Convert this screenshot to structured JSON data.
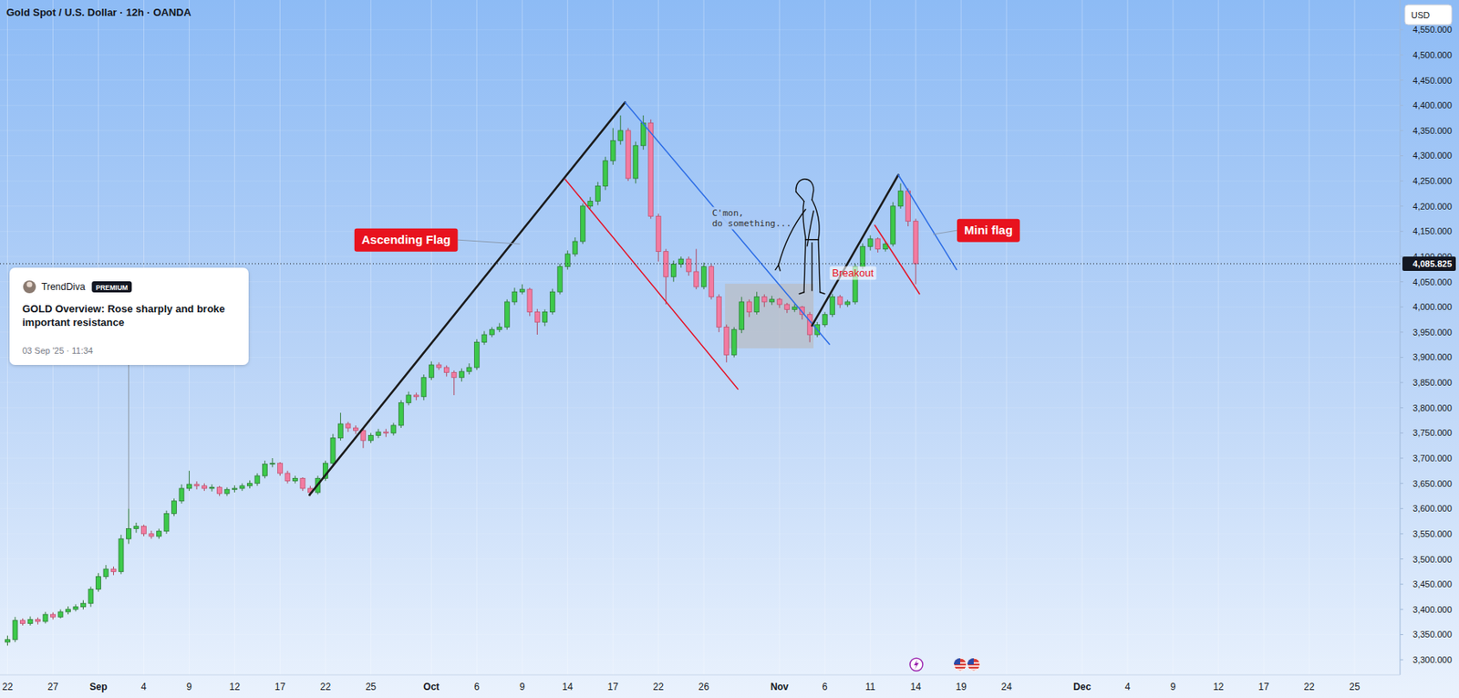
{
  "chart_data": {
    "type": "candlestick",
    "title": "Gold Spot / U.S. Dollar · 12h · OANDA",
    "currency": "USD",
    "categories": [
      "22",
      null,
      null,
      null,
      null,
      null,
      "27",
      null,
      null,
      null,
      null,
      null,
      "Sep",
      null,
      null,
      null,
      null,
      null,
      "4",
      null,
      null,
      null,
      null,
      null,
      "9",
      null,
      null,
      null,
      null,
      null,
      "12",
      null,
      null,
      null,
      null,
      null,
      "17",
      null,
      null,
      null,
      null,
      null,
      "22",
      null,
      null,
      null,
      null,
      null,
      "25",
      null,
      null,
      null,
      null,
      null,
      null,
      null,
      "Oct",
      null,
      null,
      null,
      null,
      null,
      "6",
      null,
      null,
      null,
      null,
      null,
      "9",
      null,
      null,
      null,
      null,
      null,
      "14",
      null,
      null,
      null,
      null,
      null,
      "17",
      null,
      null,
      null,
      null,
      null,
      "22",
      null,
      null,
      null,
      null,
      null,
      "26",
      null,
      null,
      null,
      null,
      null,
      null,
      null,
      null,
      null,
      "Nov",
      null,
      null,
      null,
      null,
      null,
      "6",
      null,
      null,
      null,
      null,
      null,
      "11",
      null,
      null,
      null,
      null,
      null,
      "14",
      null,
      null,
      null,
      null,
      null,
      "19",
      null,
      null,
      null,
      null,
      null,
      "24",
      null,
      null,
      null,
      null,
      null,
      null,
      null,
      null,
      null,
      "Dec",
      null,
      null,
      null,
      null,
      null,
      "4",
      null,
      null,
      null,
      null,
      null,
      "9",
      null,
      null,
      null,
      null,
      null,
      "12",
      null,
      null,
      null,
      null,
      null,
      "17",
      null,
      null,
      null,
      null,
      null,
      "22",
      null,
      null,
      null,
      null,
      null,
      "25",
      null,
      null,
      null,
      null,
      null
    ],
    "open": [
      3335,
      3340,
      3378,
      3372,
      3380,
      3376,
      3390,
      3385,
      3395,
      3400,
      3405,
      3412,
      3440,
      3465,
      3480,
      3475,
      3540,
      3560,
      3565,
      3550,
      3545,
      3555,
      3590,
      3615,
      3640,
      3648,
      3645,
      3640,
      3642,
      3630,
      3638,
      3640,
      3645,
      3650,
      3665,
      3688,
      3690,
      3670,
      3655,
      3660,
      3640,
      3632,
      3660,
      3690,
      3740,
      3768,
      3760,
      3755,
      3735,
      3745,
      3752,
      3750,
      3765,
      3810,
      3825,
      3822,
      3860,
      3885,
      3880,
      3870,
      3860,
      3872,
      3880,
      3930,
      3945,
      3955,
      3960,
      4010,
      4030,
      4035,
      3990,
      3970,
      3990,
      4030,
      4080,
      4105,
      4130,
      4200,
      4210,
      4240,
      4290,
      4330,
      4350,
      4255,
      4320,
      4365,
      4180,
      4110,
      4060,
      4085,
      4095,
      4070,
      4040,
      4080,
      4020,
      3960,
      3905,
      3955,
      4010,
      3990,
      4020,
      4010,
      4015,
      4005,
      3995,
      4000,
      3985,
      3945,
      3965,
      3985,
      4020,
      4005,
      4010,
      4080,
      4120,
      4135,
      4115,
      4125,
      4200,
      4230,
      4170,
      null,
      null,
      null,
      null,
      null,
      null,
      null,
      null,
      null,
      null,
      null,
      null,
      null,
      null,
      null,
      null,
      null,
      null,
      null,
      null,
      null,
      null,
      null,
      null,
      null,
      null,
      null,
      null,
      null,
      null,
      null,
      null,
      null,
      null,
      null,
      null,
      null,
      null,
      null,
      null,
      null,
      null,
      null,
      null,
      null,
      null,
      null,
      null,
      null,
      null,
      null,
      null,
      null,
      null,
      null,
      null,
      null,
      null,
      null,
      null,
      null,
      null,
      null
    ],
    "high": [
      3348,
      3385,
      3382,
      3386,
      3384,
      3395,
      3394,
      3400,
      3406,
      3410,
      3418,
      3445,
      3472,
      3488,
      3485,
      3548,
      3600,
      3572,
      3568,
      3556,
      3560,
      3596,
      3620,
      3648,
      3675,
      3654,
      3650,
      3648,
      3645,
      3642,
      3646,
      3650,
      3656,
      3670,
      3695,
      3700,
      3692,
      3675,
      3665,
      3662,
      3645,
      3665,
      3695,
      3748,
      3790,
      3772,
      3765,
      3760,
      3750,
      3758,
      3758,
      3770,
      3815,
      3832,
      3830,
      3866,
      3892,
      3890,
      3884,
      3874,
      3878,
      3888,
      3936,
      3952,
      3960,
      3968,
      4015,
      4038,
      4045,
      4038,
      3996,
      3995,
      4036,
      4086,
      4112,
      4138,
      4205,
      4218,
      4248,
      4298,
      4355,
      4380,
      4355,
      4328,
      4380,
      4372,
      4185,
      4115,
      4092,
      4100,
      4100,
      4115,
      4088,
      4085,
      4025,
      3965,
      3960,
      4020,
      4015,
      4030,
      4025,
      4022,
      4018,
      4008,
      4006,
      4002,
      3990,
      3970,
      3990,
      4026,
      4024,
      4014,
      4086,
      4126,
      4142,
      4138,
      4130,
      4208,
      4245,
      4235,
      4175,
      null,
      null,
      null,
      null,
      null,
      null,
      null,
      null,
      null,
      null,
      null,
      null,
      null,
      null,
      null,
      null,
      null,
      null,
      null,
      null,
      null,
      null,
      null,
      null,
      null,
      null,
      null,
      null,
      null,
      null,
      null,
      null,
      null,
      null,
      null,
      null,
      null,
      null,
      null,
      null,
      null,
      null,
      null,
      null,
      null,
      null,
      null,
      null,
      null,
      null,
      null,
      null,
      null,
      null,
      null,
      null,
      null,
      null,
      null,
      null,
      null,
      null,
      null
    ],
    "low": [
      3328,
      3335,
      3368,
      3368,
      3370,
      3372,
      3380,
      3382,
      3390,
      3396,
      3400,
      3405,
      3435,
      3460,
      3468,
      3470,
      3530,
      3552,
      3545,
      3540,
      3540,
      3550,
      3585,
      3610,
      3635,
      3638,
      3635,
      3634,
      3625,
      3625,
      3632,
      3635,
      3640,
      3645,
      3660,
      3682,
      3665,
      3650,
      3650,
      3635,
      3625,
      3628,
      3655,
      3685,
      3735,
      3752,
      3748,
      3720,
      3730,
      3740,
      3742,
      3745,
      3760,
      3805,
      3815,
      3815,
      3855,
      3875,
      3862,
      3825,
      3852,
      3866,
      3875,
      3925,
      3940,
      3950,
      3955,
      4004,
      4025,
      3982,
      3945,
      3962,
      3985,
      4025,
      4074,
      4100,
      4125,
      4195,
      4202,
      4232,
      4282,
      4322,
      4250,
      4245,
      4312,
      4175,
      4090,
      4005,
      4050,
      4078,
      4062,
      4035,
      4035,
      4015,
      3950,
      3890,
      3900,
      3948,
      3980,
      3985,
      4000,
      4004,
      3998,
      3988,
      3990,
      3975,
      3930,
      3940,
      3960,
      3980,
      3998,
      4000,
      4005,
      4075,
      4112,
      4108,
      4110,
      4120,
      4195,
      4160,
      4045,
      null,
      null,
      null,
      null,
      null,
      null,
      null,
      null,
      null,
      null,
      null,
      null,
      null,
      null,
      null,
      null,
      null,
      null,
      null,
      null,
      null,
      null,
      null,
      null,
      null,
      null,
      null,
      null,
      null,
      null,
      null,
      null,
      null,
      null,
      null,
      null,
      null,
      null,
      null,
      null,
      null,
      null,
      null,
      null,
      null,
      null,
      null,
      null,
      null,
      null,
      null,
      null,
      null,
      null,
      null,
      null,
      null,
      null,
      null,
      null,
      null,
      null,
      null
    ],
    "close": [
      3340,
      3378,
      3372,
      3380,
      3376,
      3390,
      3385,
      3395,
      3400,
      3405,
      3412,
      3440,
      3465,
      3480,
      3475,
      3540,
      3560,
      3565,
      3550,
      3545,
      3555,
      3590,
      3615,
      3640,
      3648,
      3645,
      3640,
      3642,
      3630,
      3638,
      3640,
      3645,
      3650,
      3665,
      3688,
      3690,
      3670,
      3655,
      3660,
      3640,
      3632,
      3660,
      3690,
      3740,
      3768,
      3760,
      3755,
      3735,
      3745,
      3752,
      3750,
      3765,
      3810,
      3825,
      3822,
      3860,
      3885,
      3880,
      3870,
      3860,
      3872,
      3880,
      3930,
      3945,
      3955,
      3960,
      4010,
      4030,
      4035,
      3990,
      3970,
      3990,
      4030,
      4080,
      4105,
      4130,
      4200,
      4210,
      4240,
      4290,
      4330,
      4350,
      4255,
      4320,
      4365,
      4180,
      4110,
      4060,
      4085,
      4095,
      4070,
      4040,
      4080,
      4020,
      3960,
      3905,
      3955,
      4010,
      3990,
      4020,
      4010,
      4015,
      4005,
      3995,
      4000,
      3985,
      3945,
      3965,
      3985,
      4020,
      4005,
      4010,
      4080,
      4120,
      4135,
      4115,
      4125,
      4200,
      4230,
      4170,
      4085.825,
      null,
      null,
      null,
      null,
      null,
      null,
      null,
      null,
      null,
      null,
      null,
      null,
      null,
      null,
      null,
      null,
      null,
      null,
      null,
      null,
      null,
      null,
      null,
      null,
      null,
      null,
      null,
      null,
      null,
      null,
      null,
      null,
      null,
      null,
      null,
      null,
      null,
      null,
      null,
      null,
      null,
      null,
      null,
      null,
      null,
      null,
      null,
      null,
      null,
      null,
      null,
      null,
      null,
      null,
      null,
      null,
      null,
      null,
      null,
      null,
      null,
      null,
      null
    ],
    "ylim": [
      3270,
      4609
    ],
    "yticks": [
      {
        "value": 3300,
        "label": "3,300.000"
      },
      {
        "value": 3350,
        "label": "3,350.000"
      },
      {
        "value": 3400,
        "label": "3,400.000"
      },
      {
        "value": 3450,
        "label": "3,450.000"
      },
      {
        "value": 3500,
        "label": "3,500.000"
      },
      {
        "value": 3550,
        "label": "3,550.000"
      },
      {
        "value": 3600,
        "label": "3,600.000"
      },
      {
        "value": 3650,
        "label": "3,650.000"
      },
      {
        "value": 3700,
        "label": "3,700.000"
      },
      {
        "value": 3750,
        "label": "3,750.000"
      },
      {
        "value": 3800,
        "label": "3,800.000"
      },
      {
        "value": 3850,
        "label": "3,850.000"
      },
      {
        "value": 3900,
        "label": "3,900.000"
      },
      {
        "value": 3950,
        "label": "3,950.000"
      },
      {
        "value": 4000,
        "label": "4,000.000"
      },
      {
        "value": 4050,
        "label": "4,050.000"
      },
      {
        "value": 4100,
        "label": "4,100.000"
      },
      {
        "value": 4150,
        "label": "4,150.000"
      },
      {
        "value": 4200,
        "label": "4,200.000"
      },
      {
        "value": 4250,
        "label": "4,250.000"
      },
      {
        "value": 4300,
        "label": "4,300.000"
      },
      {
        "value": 4350,
        "label": "4,350.000"
      },
      {
        "value": 4400,
        "label": "4,400.000"
      },
      {
        "value": 4450,
        "label": "4,450.000"
      },
      {
        "value": 4500,
        "label": "4,500.000"
      },
      {
        "value": 4550,
        "label": "4,550.000"
      }
    ],
    "grid": true,
    "last_price": {
      "value": 4085.825,
      "label": "4,085.825"
    },
    "annotations": {
      "lines": [
        {
          "color": "#1c1c1c",
          "x": [
            39.9,
            81.6
          ],
          "y": [
            3627,
            4406
          ]
        },
        {
          "color": "#e3172b",
          "x": [
            73.7,
            96.5
          ],
          "y": [
            4253,
            3837
          ]
        },
        {
          "color": "#2f6fe6",
          "x": [
            81.6,
            108.6
          ],
          "y": [
            4406,
            3926
          ]
        },
        {
          "color": "#1c1c1c",
          "x": [
            106.3,
            117.7
          ],
          "y": [
            3963,
            4262
          ]
        },
        {
          "color": "#e3172b",
          "x": [
            114.6,
            120.5
          ],
          "y": [
            4162,
            4026
          ]
        },
        {
          "color": "#2f6fe6",
          "x": [
            117.7,
            125.4
          ],
          "y": [
            4262,
            4074
          ]
        }
      ],
      "boxes": [
        {
          "color": "#b9bec6",
          "x": [
            94.8,
            106.5
          ],
          "y": [
            3918,
            4046
          ]
        }
      ],
      "tags": [
        {
          "text": "Ascending Flag",
          "x": 67.7,
          "y": 4125
        },
        {
          "text": "Mini flag",
          "x": 122.3,
          "y": 4144
        }
      ],
      "texts": [
        {
          "text": "Breakout",
          "x": 111.7,
          "y": 4068
        }
      ],
      "comment": {
        "lines": [
          "C'mon,",
          "do something..."
        ],
        "x": 93.1,
        "y": 4181
      },
      "note": {
        "author": "TrendDiva",
        "badge": "PREMIUM",
        "title": "GOLD Overview: Rose sharply and broke important resistance",
        "date": "03 Sep '25 · 11:34",
        "x": 16
      }
    }
  }
}
